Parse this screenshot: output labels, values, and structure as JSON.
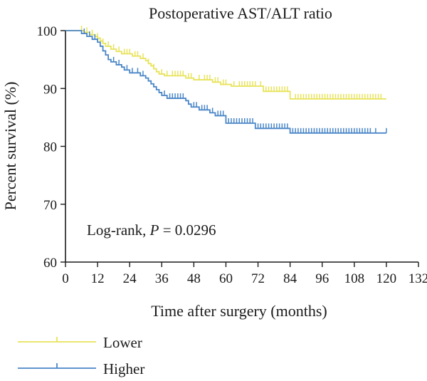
{
  "chart_data": {
    "type": "line",
    "title": "Postoperative AST/ALT ratio",
    "xlabel": "Time after surgery (months)",
    "ylabel": "Percent survival (%)",
    "xlim": [
      0,
      132
    ],
    "ylim": [
      60,
      100
    ],
    "xticks": [
      0,
      12,
      24,
      36,
      48,
      60,
      72,
      84,
      96,
      108,
      120,
      132
    ],
    "yticks": [
      60,
      70,
      80,
      90,
      100
    ],
    "annotation": {
      "prefix": "Log-rank, ",
      "p_label": "P",
      "suffix": " = 0.0296"
    },
    "legend_position": "bottom-left",
    "series": [
      {
        "name": "Lower",
        "color": "#e8e35a",
        "steps": [
          [
            0,
            100
          ],
          [
            7,
            99.7
          ],
          [
            9,
            99.3
          ],
          [
            11,
            99.0
          ],
          [
            12,
            98.7
          ],
          [
            13,
            98.2
          ],
          [
            14,
            97.8
          ],
          [
            15,
            97.3
          ],
          [
            17,
            96.8
          ],
          [
            19,
            96.4
          ],
          [
            21,
            96.0
          ],
          [
            25,
            95.6
          ],
          [
            28,
            95.2
          ],
          [
            30,
            94.8
          ],
          [
            31,
            94.3
          ],
          [
            32,
            93.9
          ],
          [
            33,
            93.4
          ],
          [
            34,
            92.9
          ],
          [
            35,
            92.5
          ],
          [
            37,
            92.2
          ],
          [
            45,
            91.8
          ],
          [
            48,
            91.5
          ],
          [
            55,
            91.1
          ],
          [
            58,
            90.7
          ],
          [
            62,
            90.4
          ],
          [
            74,
            89.5
          ],
          [
            84,
            88.2
          ],
          [
            120,
            88.2
          ]
        ],
        "censor": [
          6,
          8,
          10,
          12,
          14,
          16,
          18,
          20,
          22,
          23,
          24,
          26,
          27,
          29,
          31,
          33,
          36,
          38,
          40,
          41,
          42,
          43,
          44,
          46,
          47,
          50,
          52,
          53,
          54,
          56,
          57,
          59,
          60,
          63,
          65,
          66,
          67,
          68,
          69,
          70,
          71,
          73,
          75,
          76,
          77,
          78,
          79,
          80,
          81,
          82,
          83,
          86,
          87,
          88,
          89,
          90,
          91,
          92,
          93,
          94,
          95,
          96,
          97,
          98,
          99,
          100,
          101,
          102,
          103,
          104,
          105,
          106,
          107,
          108,
          109,
          110,
          111,
          112,
          113,
          114,
          115,
          116,
          117,
          118
        ]
      },
      {
        "name": "Higher",
        "color": "#4a86c8",
        "steps": [
          [
            0,
            100
          ],
          [
            6,
            99.5
          ],
          [
            8,
            99.0
          ],
          [
            10,
            98.5
          ],
          [
            12,
            98.0
          ],
          [
            13,
            97.3
          ],
          [
            14,
            96.5
          ],
          [
            15,
            95.8
          ],
          [
            16,
            95.0
          ],
          [
            17,
            94.6
          ],
          [
            19,
            94.1
          ],
          [
            21,
            93.7
          ],
          [
            22,
            93.2
          ],
          [
            24,
            92.7
          ],
          [
            28,
            92.2
          ],
          [
            30,
            91.8
          ],
          [
            31,
            91.3
          ],
          [
            32,
            90.8
          ],
          [
            33,
            90.3
          ],
          [
            34,
            89.8
          ],
          [
            35,
            89.3
          ],
          [
            36,
            88.8
          ],
          [
            38,
            88.3
          ],
          [
            45,
            87.9
          ],
          [
            46,
            87.3
          ],
          [
            47,
            86.8
          ],
          [
            50,
            86.3
          ],
          [
            54,
            85.8
          ],
          [
            56,
            85.3
          ],
          [
            60,
            84.0
          ],
          [
            71,
            83.1
          ],
          [
            84,
            82.3
          ],
          [
            120,
            82.3
          ]
        ],
        "censor": [
          7,
          9,
          11,
          18,
          20,
          23,
          25,
          27,
          29,
          37,
          39,
          40,
          41,
          42,
          43,
          44,
          48,
          49,
          51,
          52,
          53,
          55,
          57,
          58,
          59,
          61,
          62,
          63,
          64,
          65,
          66,
          67,
          68,
          69,
          70,
          72,
          73,
          74,
          75,
          76,
          77,
          78,
          79,
          80,
          81,
          82,
          83,
          85,
          86,
          87,
          88,
          89,
          90,
          91,
          92,
          93,
          94,
          95,
          96,
          97,
          98,
          99,
          100,
          101,
          102,
          103,
          104,
          105,
          106,
          107,
          108,
          109,
          110,
          111,
          112,
          113,
          114,
          116,
          120
        ]
      }
    ]
  }
}
